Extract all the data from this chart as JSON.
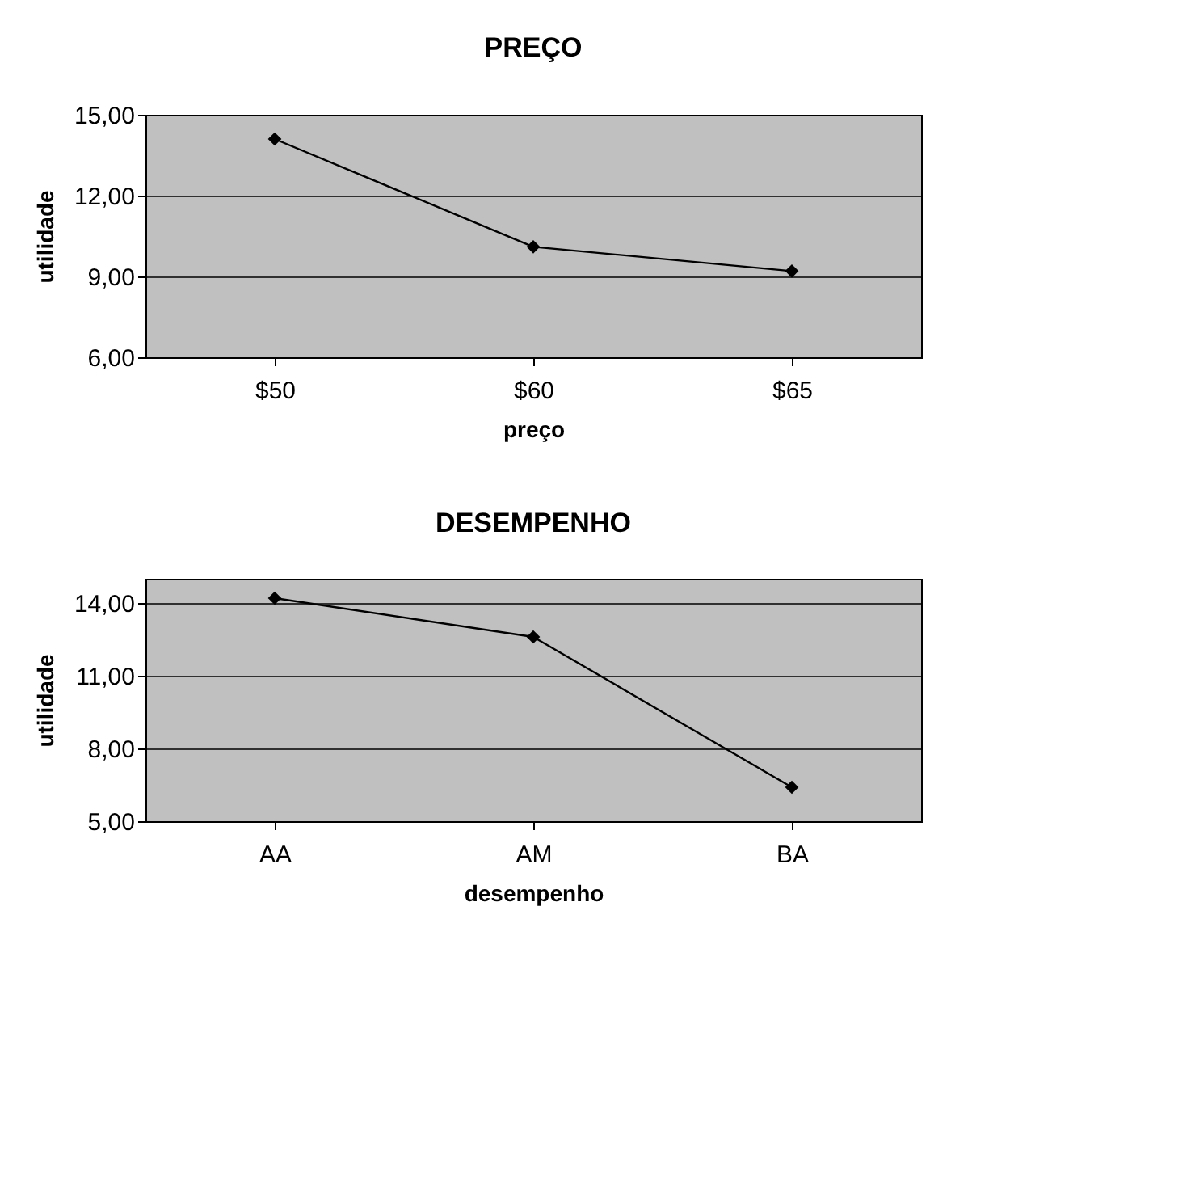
{
  "chart_data": [
    {
      "type": "line",
      "title": "PREÇO",
      "xlabel": "preço",
      "ylabel": "utilidade",
      "categories": [
        "$50",
        "$60",
        "$65"
      ],
      "series": [
        {
          "color": "#000000",
          "values": [
            14.1,
            10.1,
            9.2
          ]
        }
      ],
      "ylim": [
        6,
        15
      ],
      "yticks": [
        {
          "value": 6,
          "label": "6,00"
        },
        {
          "value": 9,
          "label": "9,00"
        },
        {
          "value": 12,
          "label": "12,00"
        },
        {
          "value": 15,
          "label": "15,00"
        }
      ],
      "grid": "y",
      "marker": "diamond",
      "line_style": "solid"
    },
    {
      "type": "line",
      "title": "DESEMPENHO",
      "xlabel": "desempenho",
      "ylabel": "utilidade",
      "categories": [
        "AA",
        "AM",
        "BA"
      ],
      "series": [
        {
          "color": "#000000",
          "values": [
            14.2,
            12.6,
            6.4
          ]
        }
      ],
      "ylim": [
        5,
        15
      ],
      "yticks": [
        {
          "value": 5,
          "label": "5,00"
        },
        {
          "value": 8,
          "label": "8,00"
        },
        {
          "value": 11,
          "label": "11,00"
        },
        {
          "value": 14,
          "label": "14,00"
        }
      ],
      "grid": "y",
      "marker": "diamond",
      "line_style": "solid"
    }
  ]
}
